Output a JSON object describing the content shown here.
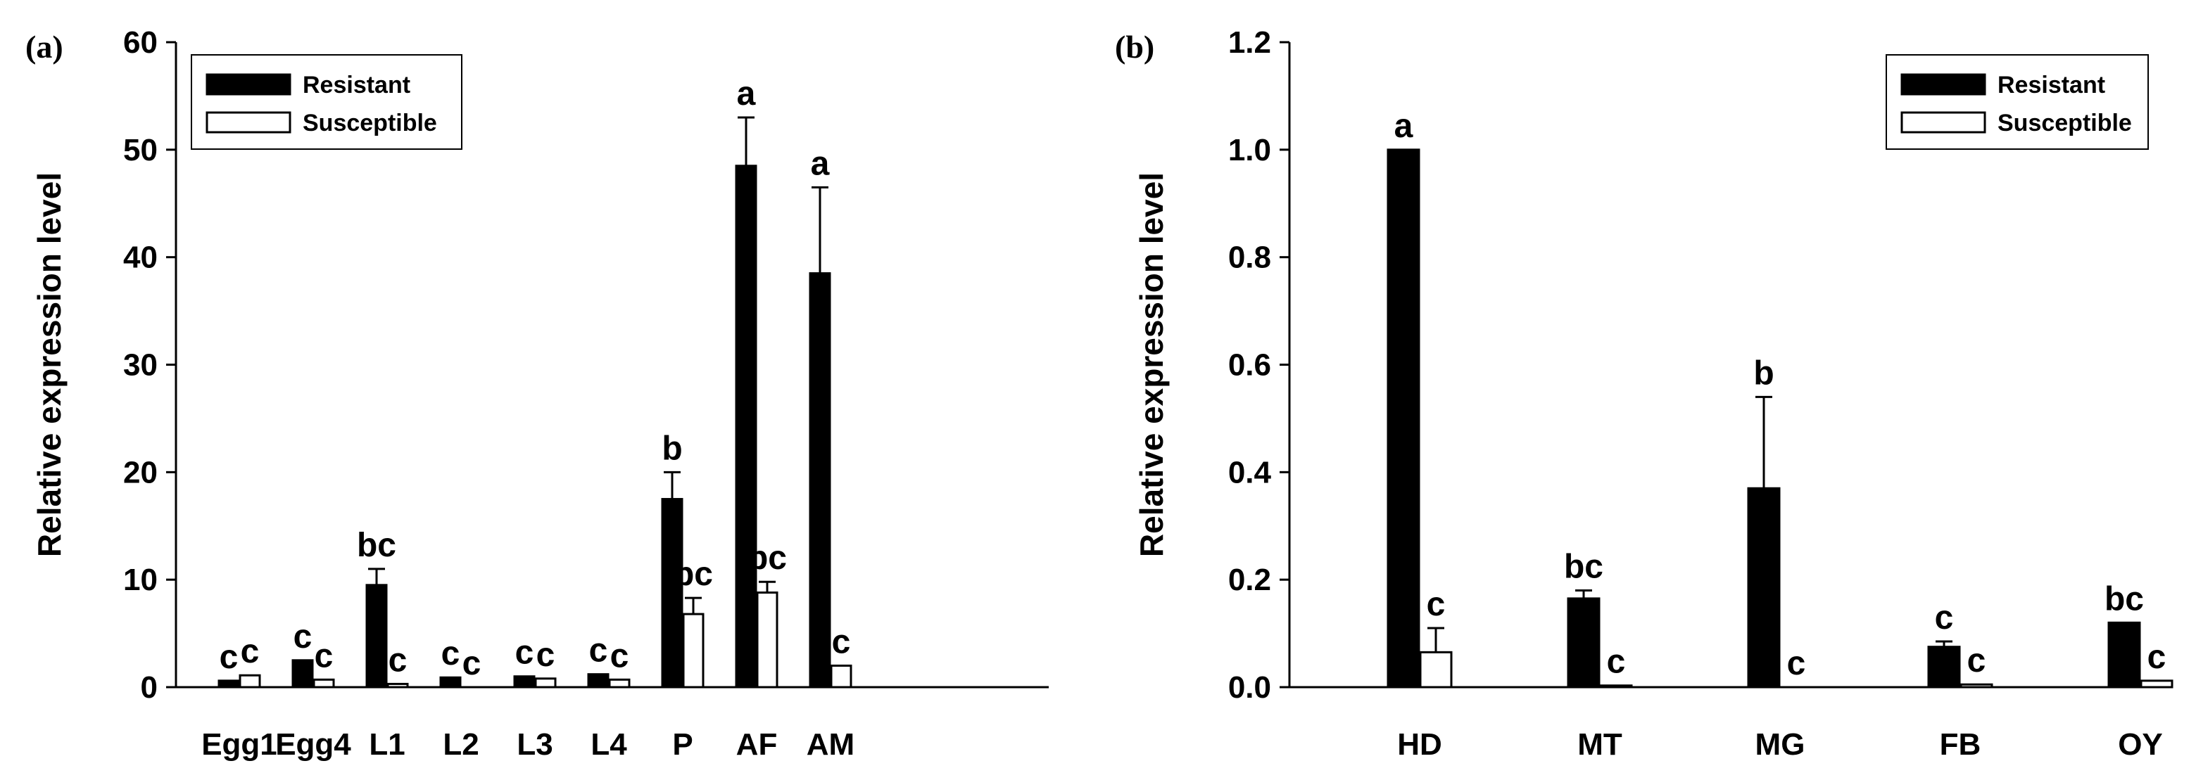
{
  "chart_data": [
    {
      "type": "bar",
      "panel_label": "(a)",
      "ylabel": "Relative expression level",
      "ylim": [
        0,
        60
      ],
      "yticks": [
        "0",
        "10",
        "20",
        "30",
        "40",
        "50",
        "60"
      ],
      "categories": [
        "Egg1",
        "Egg4",
        "L1",
        "L2",
        "L3",
        "L4",
        "P",
        "AF",
        "AM"
      ],
      "series": [
        {
          "name": "Resistant",
          "color": "#000000",
          "values": [
            0.6,
            2.5,
            9.5,
            0.9,
            1.0,
            1.2,
            17.5,
            48.5,
            38.5
          ],
          "errors": [
            0,
            0,
            1.5,
            0,
            0,
            0,
            2.5,
            4.5,
            8.0
          ],
          "letters": [
            "c",
            "c",
            "bc",
            "c",
            "c",
            "c",
            "b",
            "a",
            "a"
          ]
        },
        {
          "name": "Susceptible",
          "color": "#ffffff",
          "values": [
            1.1,
            0.7,
            0.3,
            0.0,
            0.8,
            0.7,
            6.8,
            8.8,
            2.0
          ],
          "errors": [
            0,
            0,
            0,
            0,
            0,
            0,
            1.5,
            1.0,
            0
          ],
          "letters": [
            "c",
            "c",
            "c",
            "c",
            "c",
            "c",
            "bc",
            "bc",
            "c"
          ]
        }
      ],
      "legend": {
        "position": "top-left",
        "entries": [
          "Resistant",
          "Susceptible"
        ]
      }
    },
    {
      "type": "bar",
      "panel_label": "(b)",
      "ylabel": "Relative expression level",
      "ylim": [
        0,
        1.2
      ],
      "yticks": [
        "0.0",
        "0.2",
        "0.4",
        "0.6",
        "0.8",
        "1.0",
        "1.2"
      ],
      "categories": [
        "HD",
        "MT",
        "MG",
        "FB",
        "OY"
      ],
      "series": [
        {
          "name": "Resistant",
          "color": "#000000",
          "values": [
            1.0,
            0.165,
            0.37,
            0.075,
            0.12
          ],
          "errors": [
            0,
            0.015,
            0.17,
            0.01,
            0
          ],
          "letters": [
            "a",
            "bc",
            "b",
            "c",
            "bc"
          ]
        },
        {
          "name": "Susceptible",
          "color": "#ffffff",
          "values": [
            0.065,
            0.003,
            0.0,
            0.005,
            0.012
          ],
          "errors": [
            0.045,
            0,
            0,
            0,
            0
          ],
          "letters": [
            "c",
            "c",
            "c",
            "c",
            "c"
          ]
        }
      ],
      "legend": {
        "position": "top-right",
        "entries": [
          "Resistant",
          "Susceptible"
        ]
      }
    }
  ]
}
